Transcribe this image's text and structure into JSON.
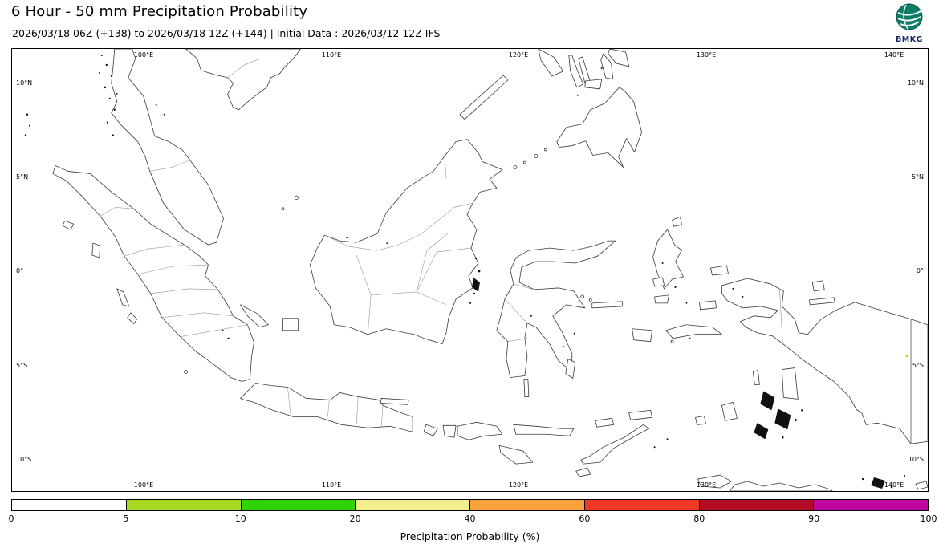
{
  "header": {
    "title": "6 Hour - 50 mm Precipitation Probability",
    "subtitle": "2026/03/18 06Z (+138) to 2026/03/18 12Z (+144) | Initial Data : 2026/03/12 12Z IFS",
    "logo": {
      "text": "BMKG"
    }
  },
  "map": {
    "lat_labels": [
      "10°N",
      "5°N",
      "0°",
      "5°S",
      "10°S"
    ],
    "lon_labels": [
      "100°E",
      "110°E",
      "120°E",
      "130°E",
      "140°E"
    ]
  },
  "colorbar": {
    "label": "Precipitation Probability (%)",
    "ticks": [
      "0",
      "5",
      "10",
      "20",
      "40",
      "60",
      "80",
      "90",
      "100"
    ],
    "segment_ranges": [
      "0-5",
      "5-10",
      "10-20",
      "20-40",
      "40-60",
      "60-80",
      "80-90",
      "90-100"
    ],
    "segment_colors": [
      "#ffffff",
      "#a8d820",
      "#2fd30a",
      "#f3ef8e",
      "#f9a23c",
      "#ee3a24",
      "#b30b26",
      "#bf06a1"
    ]
  },
  "chart_data": {
    "type": "heatmap",
    "title": "6 Hour - 50 mm Precipitation Probability",
    "valid_period": "2026/03/18 06Z (+138) to 2026/03/18 12Z (+144)",
    "initial_data": "2026/03/12 12Z IFS",
    "x_ticks": [
      "100°E",
      "110°E",
      "120°E",
      "130°E",
      "140°E"
    ],
    "y_ticks": [
      "10°N",
      "5°N",
      "0°",
      "5°S",
      "10°S"
    ],
    "colorbar_label": "Precipitation Probability (%)",
    "colorbar_ticks": [
      0,
      5,
      10,
      20,
      40,
      60,
      80,
      90,
      100
    ],
    "colorbar_colors": [
      "#ffffff",
      "#a8d820",
      "#2fd30a",
      "#f3ef8e",
      "#f9a23c",
      "#ee3a24",
      "#b30b26",
      "#bf06a1"
    ],
    "legend_position": "bottom"
  }
}
